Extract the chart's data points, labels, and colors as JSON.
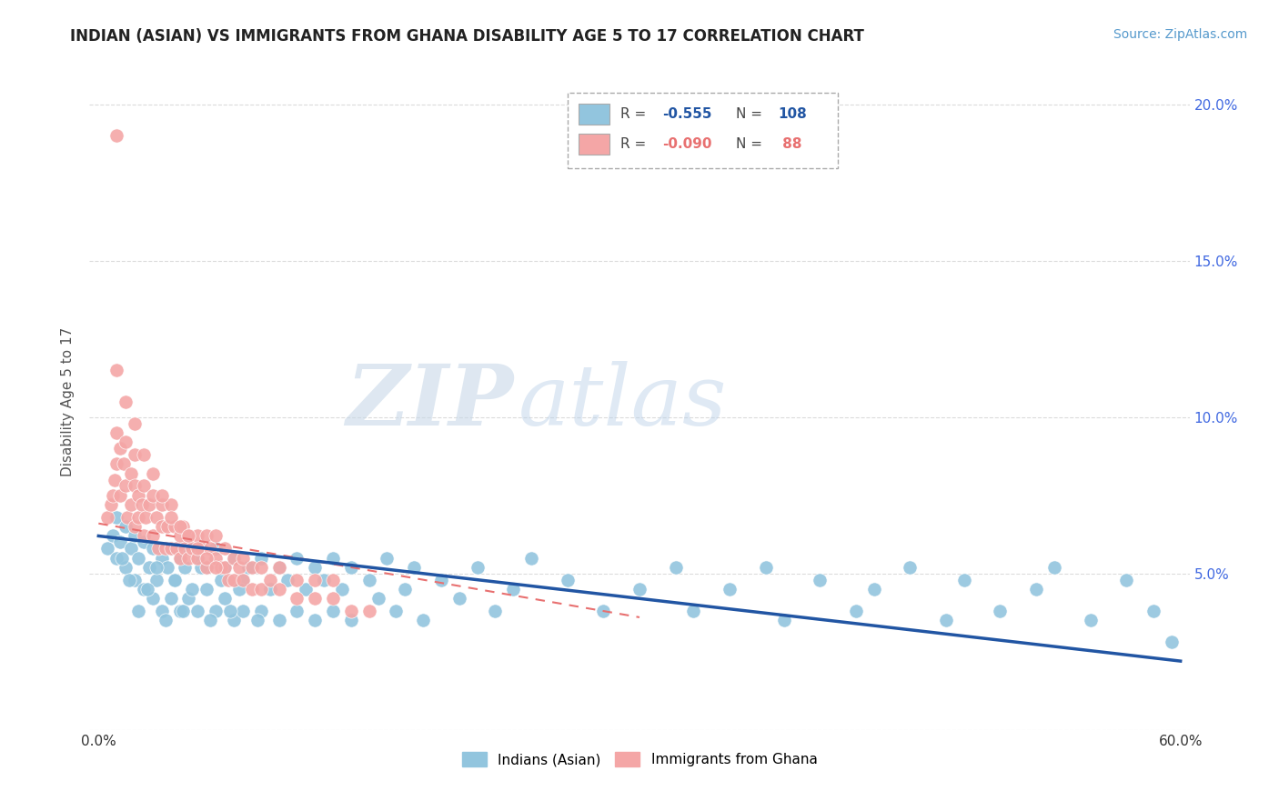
{
  "title": "INDIAN (ASIAN) VS IMMIGRANTS FROM GHANA DISABILITY AGE 5 TO 17 CORRELATION CHART",
  "source": "Source: ZipAtlas.com",
  "ylabel": "Disability Age 5 to 17",
  "xlim": [
    -0.005,
    0.605
  ],
  "ylim": [
    0.0,
    0.21
  ],
  "xtick_vals": [
    0.0,
    0.1,
    0.2,
    0.3,
    0.4,
    0.5,
    0.6
  ],
  "xticklabels": [
    "0.0%",
    "",
    "",
    "",
    "",
    "",
    "60.0%"
  ],
  "ytick_vals": [
    0.0,
    0.05,
    0.1,
    0.15,
    0.2
  ],
  "yticklabels_left": [
    "",
    "",
    "",
    "",
    ""
  ],
  "yticklabels_right": [
    "",
    "5.0%",
    "10.0%",
    "15.0%",
    "20.0%"
  ],
  "color_blue": "#92C5DE",
  "color_pink": "#F4A6A6",
  "trendline_blue": "#2155A3",
  "trendline_pink": "#E87070",
  "watermark_zip": "ZIP",
  "watermark_atlas": "atlas",
  "background_color": "#FFFFFF",
  "title_color": "#222222",
  "label_blue": "Indians (Asian)",
  "label_pink": "Immigrants from Ghana",
  "blue_trendline_x": [
    0.0,
    0.6
  ],
  "blue_trendline_y": [
    0.062,
    0.022
  ],
  "pink_trendline_x": [
    0.0,
    0.3
  ],
  "pink_trendline_y": [
    0.066,
    0.036
  ],
  "blue_scatter_x": [
    0.005,
    0.008,
    0.01,
    0.01,
    0.012,
    0.015,
    0.015,
    0.018,
    0.02,
    0.02,
    0.022,
    0.025,
    0.025,
    0.028,
    0.03,
    0.03,
    0.032,
    0.035,
    0.035,
    0.038,
    0.04,
    0.04,
    0.042,
    0.045,
    0.045,
    0.048,
    0.05,
    0.05,
    0.055,
    0.055,
    0.06,
    0.06,
    0.065,
    0.065,
    0.07,
    0.07,
    0.075,
    0.075,
    0.08,
    0.08,
    0.085,
    0.09,
    0.09,
    0.095,
    0.1,
    0.1,
    0.105,
    0.11,
    0.11,
    0.115,
    0.12,
    0.12,
    0.125,
    0.13,
    0.13,
    0.135,
    0.14,
    0.14,
    0.15,
    0.155,
    0.16,
    0.165,
    0.17,
    0.175,
    0.18,
    0.19,
    0.2,
    0.21,
    0.22,
    0.23,
    0.24,
    0.26,
    0.28,
    0.3,
    0.32,
    0.33,
    0.35,
    0.37,
    0.38,
    0.4,
    0.42,
    0.43,
    0.45,
    0.47,
    0.48,
    0.5,
    0.52,
    0.53,
    0.55,
    0.57,
    0.585,
    0.595,
    0.013,
    0.017,
    0.022,
    0.027,
    0.032,
    0.037,
    0.042,
    0.047,
    0.052,
    0.057,
    0.062,
    0.068,
    0.073,
    0.078,
    0.083,
    0.088
  ],
  "blue_scatter_y": [
    0.058,
    0.062,
    0.055,
    0.068,
    0.06,
    0.065,
    0.052,
    0.058,
    0.062,
    0.048,
    0.055,
    0.06,
    0.045,
    0.052,
    0.058,
    0.042,
    0.048,
    0.055,
    0.038,
    0.052,
    0.058,
    0.042,
    0.048,
    0.055,
    0.038,
    0.052,
    0.058,
    0.042,
    0.055,
    0.038,
    0.052,
    0.045,
    0.058,
    0.038,
    0.052,
    0.042,
    0.055,
    0.035,
    0.048,
    0.038,
    0.052,
    0.055,
    0.038,
    0.045,
    0.052,
    0.035,
    0.048,
    0.055,
    0.038,
    0.045,
    0.052,
    0.035,
    0.048,
    0.055,
    0.038,
    0.045,
    0.052,
    0.035,
    0.048,
    0.042,
    0.055,
    0.038,
    0.045,
    0.052,
    0.035,
    0.048,
    0.042,
    0.052,
    0.038,
    0.045,
    0.055,
    0.048,
    0.038,
    0.045,
    0.052,
    0.038,
    0.045,
    0.052,
    0.035,
    0.048,
    0.038,
    0.045,
    0.052,
    0.035,
    0.048,
    0.038,
    0.045,
    0.052,
    0.035,
    0.048,
    0.038,
    0.028,
    0.055,
    0.048,
    0.038,
    0.045,
    0.052,
    0.035,
    0.048,
    0.038,
    0.045,
    0.052,
    0.035,
    0.048,
    0.038,
    0.045,
    0.052,
    0.035
  ],
  "pink_scatter_x": [
    0.005,
    0.007,
    0.008,
    0.009,
    0.01,
    0.01,
    0.01,
    0.012,
    0.012,
    0.014,
    0.015,
    0.015,
    0.016,
    0.018,
    0.018,
    0.02,
    0.02,
    0.02,
    0.022,
    0.022,
    0.024,
    0.025,
    0.025,
    0.026,
    0.028,
    0.03,
    0.03,
    0.032,
    0.033,
    0.035,
    0.035,
    0.037,
    0.038,
    0.04,
    0.04,
    0.042,
    0.043,
    0.045,
    0.045,
    0.047,
    0.048,
    0.05,
    0.05,
    0.052,
    0.055,
    0.055,
    0.057,
    0.06,
    0.06,
    0.062,
    0.065,
    0.065,
    0.068,
    0.07,
    0.07,
    0.072,
    0.075,
    0.075,
    0.078,
    0.08,
    0.08,
    0.085,
    0.085,
    0.09,
    0.09,
    0.095,
    0.1,
    0.1,
    0.11,
    0.11,
    0.12,
    0.12,
    0.13,
    0.13,
    0.14,
    0.15,
    0.01,
    0.015,
    0.02,
    0.025,
    0.03,
    0.035,
    0.04,
    0.045,
    0.05,
    0.055,
    0.06,
    0.065
  ],
  "pink_scatter_y": [
    0.068,
    0.072,
    0.075,
    0.08,
    0.085,
    0.095,
    0.115,
    0.09,
    0.075,
    0.085,
    0.078,
    0.092,
    0.068,
    0.082,
    0.072,
    0.078,
    0.088,
    0.065,
    0.075,
    0.068,
    0.072,
    0.078,
    0.062,
    0.068,
    0.072,
    0.075,
    0.062,
    0.068,
    0.058,
    0.065,
    0.072,
    0.058,
    0.065,
    0.072,
    0.058,
    0.065,
    0.058,
    0.062,
    0.055,
    0.065,
    0.058,
    0.062,
    0.055,
    0.058,
    0.062,
    0.055,
    0.058,
    0.062,
    0.052,
    0.058,
    0.062,
    0.055,
    0.052,
    0.058,
    0.052,
    0.048,
    0.055,
    0.048,
    0.052,
    0.055,
    0.048,
    0.052,
    0.045,
    0.052,
    0.045,
    0.048,
    0.052,
    0.045,
    0.048,
    0.042,
    0.048,
    0.042,
    0.048,
    0.042,
    0.038,
    0.038,
    0.19,
    0.105,
    0.098,
    0.088,
    0.082,
    0.075,
    0.068,
    0.065,
    0.062,
    0.058,
    0.055,
    0.052
  ]
}
